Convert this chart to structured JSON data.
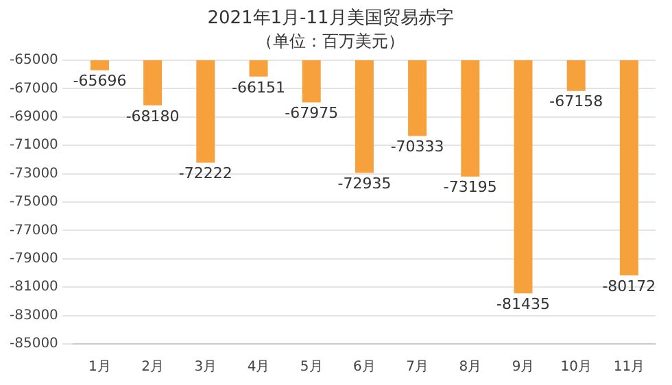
{
  "chart_data": {
    "type": "bar",
    "title": "2021年1月-11月美国贸易赤字",
    "subtitle": "（单位：百万美元）",
    "categories": [
      "1月",
      "2月",
      "3月",
      "4月",
      "5月",
      "6月",
      "7月",
      "8月",
      "9月",
      "10月",
      "11月"
    ],
    "values": [
      -65696,
      -68180,
      -72222,
      -66151,
      -67975,
      -72935,
      -70333,
      -73195,
      -81435,
      -67158,
      -80172
    ],
    "color": "#f7a13c",
    "ylim": [
      -85000,
      -65000
    ],
    "yticks": [
      -65000,
      -67000,
      -69000,
      -71000,
      -73000,
      -75000,
      -77000,
      -79000,
      -81000,
      -83000,
      -85000
    ],
    "grid": "y",
    "data_labels": true
  }
}
